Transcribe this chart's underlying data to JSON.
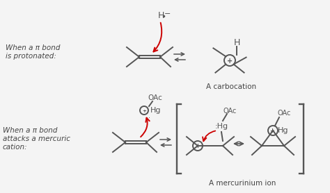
{
  "bg_color": "#f4f4f4",
  "line_color": "#555555",
  "arrow_color": "#cc0000",
  "text_color": "#444444",
  "label1": "When a π bond\nis protonated:",
  "label2": "When a π bond\nattacks a mercuric\ncation:",
  "carbocation_label": "A carbocation",
  "mercurinium_label": "A mercurinium ion"
}
